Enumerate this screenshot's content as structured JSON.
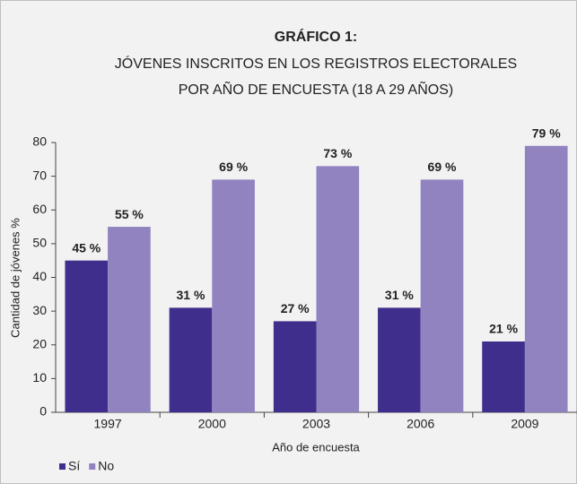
{
  "chart_data": {
    "type": "bar",
    "title": "GRÁFICO 1:",
    "subtitle": [
      "JÓVENES INSCRITOS EN LOS REGISTROS ELECTORALES",
      "POR AÑO DE ENCUESTA (18 A 29 AÑOS)"
    ],
    "categories": [
      "1997",
      "2000",
      "2003",
      "2006",
      "2009"
    ],
    "series": [
      {
        "name": "Sí",
        "color": "#3f2e8c",
        "values": [
          45,
          31,
          27,
          31,
          21
        ],
        "value_labels": [
          "45 %",
          "31 %",
          "27 %",
          "31 %",
          "21 %"
        ]
      },
      {
        "name": "No",
        "color": "#9183c0",
        "values": [
          55,
          69,
          73,
          69,
          79
        ],
        "value_labels": [
          "55 %",
          "69 %",
          "73 %",
          "69 %",
          "79 %"
        ]
      }
    ],
    "ylim": [
      0,
      80
    ],
    "yticks": [
      0,
      10,
      20,
      30,
      40,
      50,
      60,
      70,
      80
    ],
    "ylabel": "Cantidad de jóvenes %",
    "xlabel": "Año de encuesta",
    "grid": false,
    "legend": "bottom-left"
  }
}
